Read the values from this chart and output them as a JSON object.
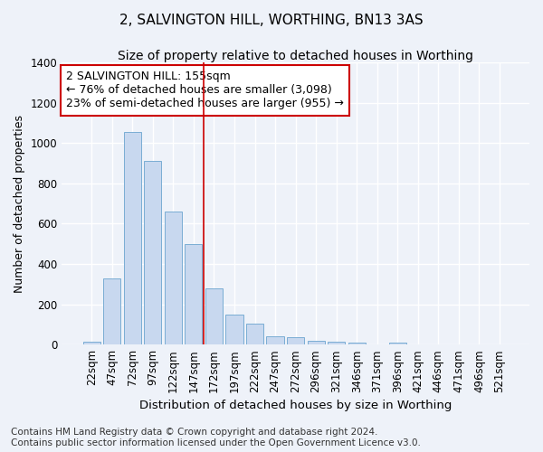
{
  "title": "2, SALVINGTON HILL, WORTHING, BN13 3AS",
  "subtitle": "Size of property relative to detached houses in Worthing",
  "xlabel": "Distribution of detached houses by size in Worthing",
  "ylabel": "Number of detached properties",
  "categories": [
    "22sqm",
    "47sqm",
    "72sqm",
    "97sqm",
    "122sqm",
    "147sqm",
    "172sqm",
    "197sqm",
    "222sqm",
    "247sqm",
    "272sqm",
    "296sqm",
    "321sqm",
    "346sqm",
    "371sqm",
    "396sqm",
    "421sqm",
    "446sqm",
    "471sqm",
    "496sqm",
    "521sqm"
  ],
  "values": [
    15,
    328,
    1055,
    910,
    660,
    500,
    280,
    150,
    105,
    40,
    38,
    20,
    15,
    12,
    0,
    10,
    0,
    0,
    0,
    0,
    0
  ],
  "bar_color": "#c8d8ef",
  "bar_edgecolor": "#7aadd4",
  "background_color": "#eef2f9",
  "grid_color": "#ffffff",
  "vline_x": 5.5,
  "vline_color": "#cc0000",
  "annotation_text": "2 SALVINGTON HILL: 155sqm\n← 76% of detached houses are smaller (3,098)\n23% of semi-detached houses are larger (955) →",
  "annotation_box_color": "white",
  "annotation_box_edgecolor": "#cc0000",
  "ylim": [
    0,
    1400
  ],
  "yticks": [
    0,
    200,
    400,
    600,
    800,
    1000,
    1200,
    1400
  ],
  "footer_text": "Contains HM Land Registry data © Crown copyright and database right 2024.\nContains public sector information licensed under the Open Government Licence v3.0.",
  "title_fontsize": 11,
  "subtitle_fontsize": 10,
  "xlabel_fontsize": 9.5,
  "ylabel_fontsize": 9,
  "tick_fontsize": 8.5,
  "annotation_fontsize": 9,
  "footer_fontsize": 7.5
}
